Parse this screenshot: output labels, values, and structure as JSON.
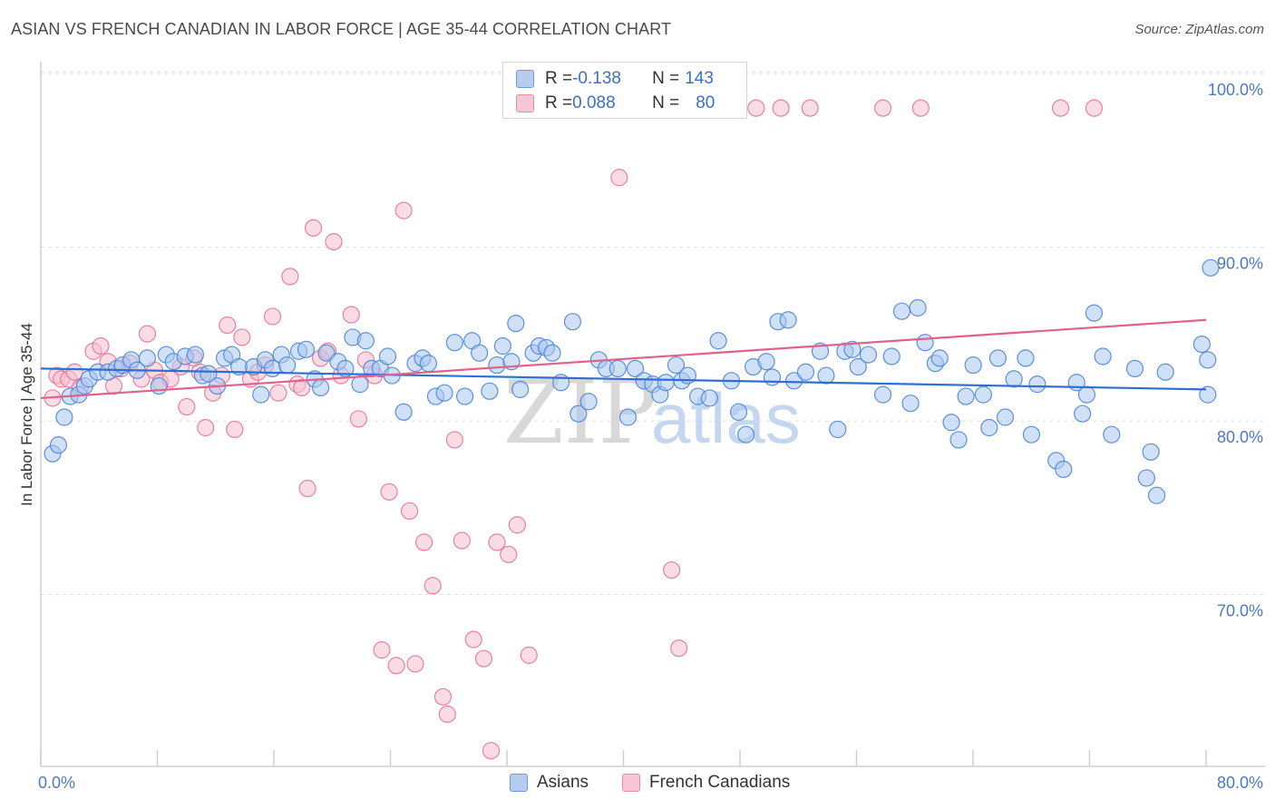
{
  "title": "ASIAN VS FRENCH CANADIAN IN LABOR FORCE | AGE 35-44 CORRELATION CHART",
  "source": "Source: ZipAtlas.com",
  "watermark": {
    "zip": "ZIP",
    "atlas": "atlas"
  },
  "legend": {
    "rows": [
      {
        "r_label": "R = ",
        "r_value": "-0.138",
        "n_label": "N = ",
        "n_value": "143"
      },
      {
        "r_label": "R = ",
        "r_value": "0.088",
        "n_label": "N = ",
        "n_value": "80"
      }
    ]
  },
  "bottom_legend": {
    "asians": "Asians",
    "french": "French Canadians"
  },
  "colors": {
    "asian": "#4a86d8",
    "french": "#e8739a",
    "asian_fill": "#a9c6ee",
    "french_fill": "#f6bfd0",
    "tick": "#4a78c8"
  },
  "chart_data": {
    "type": "scatter",
    "title": "ASIAN VS FRENCH CANADIAN IN LABOR FORCE | AGE 35-44 CORRELATION CHART",
    "xlabel": "",
    "ylabel": "In Labor Force | Age 35-44",
    "xlim": [
      0,
      80
    ],
    "ylim": [
      61,
      101
    ],
    "x_tick_labels": [
      "0.0%",
      "80.0%"
    ],
    "y_ticks": [
      70,
      80,
      90,
      100
    ],
    "y_tick_labels": [
      "70.0%",
      "80.0%",
      "90.0%",
      "100.0%"
    ],
    "grid": "horizontal dashed",
    "legend_position": "top-center",
    "series": [
      {
        "name": "Asians",
        "r": -0.138,
        "n": 143,
        "trend": [
          [
            0,
            85.0
          ],
          [
            80,
            83.8
          ]
        ],
        "points": [
          [
            0.5,
            80.1
          ],
          [
            0.9,
            80.6
          ],
          [
            1.3,
            82.2
          ],
          [
            1.7,
            83.4
          ],
          [
            2.3,
            83.5
          ],
          [
            2.7,
            84.0
          ],
          [
            3.0,
            84.4
          ],
          [
            3.6,
            84.8
          ],
          [
            4.3,
            84.8
          ],
          [
            4.9,
            85.0
          ],
          [
            5.3,
            85.2
          ],
          [
            5.9,
            85.5
          ],
          [
            6.3,
            84.9
          ],
          [
            7.0,
            85.6
          ],
          [
            7.8,
            84.0
          ],
          [
            8.3,
            85.8
          ],
          [
            8.8,
            85.4
          ],
          [
            9.6,
            85.7
          ],
          [
            10.3,
            85.8
          ],
          [
            10.8,
            84.6
          ],
          [
            11.2,
            84.7
          ],
          [
            11.8,
            84.0
          ],
          [
            12.3,
            85.6
          ],
          [
            12.8,
            85.8
          ],
          [
            13.3,
            85.1
          ],
          [
            14.3,
            85.1
          ],
          [
            14.8,
            83.5
          ],
          [
            15.1,
            85.5
          ],
          [
            15.6,
            85.0
          ],
          [
            16.2,
            85.8
          ],
          [
            16.6,
            85.2
          ],
          [
            17.4,
            86.0
          ],
          [
            17.9,
            86.1
          ],
          [
            18.5,
            84.4
          ],
          [
            18.9,
            83.9
          ],
          [
            19.3,
            85.9
          ],
          [
            20.1,
            85.4
          ],
          [
            20.6,
            85.0
          ],
          [
            21.1,
            86.8
          ],
          [
            21.6,
            84.1
          ],
          [
            22.0,
            86.6
          ],
          [
            22.4,
            85.0
          ],
          [
            23.0,
            85.0
          ],
          [
            23.5,
            85.7
          ],
          [
            23.8,
            84.6
          ],
          [
            24.6,
            82.5
          ],
          [
            25.4,
            85.3
          ],
          [
            25.9,
            85.6
          ],
          [
            26.3,
            85.3
          ],
          [
            26.8,
            83.4
          ],
          [
            27.4,
            83.6
          ],
          [
            28.1,
            86.5
          ],
          [
            28.8,
            83.4
          ],
          [
            29.3,
            86.6
          ],
          [
            29.8,
            85.9
          ],
          [
            30.5,
            83.7
          ],
          [
            31.0,
            85.2
          ],
          [
            31.4,
            86.3
          ],
          [
            32.0,
            85.4
          ],
          [
            32.3,
            87.6
          ],
          [
            32.6,
            83.8
          ],
          [
            33.5,
            85.9
          ],
          [
            33.9,
            86.3
          ],
          [
            34.4,
            86.2
          ],
          [
            34.8,
            85.9
          ],
          [
            35.4,
            84.2
          ],
          [
            36.2,
            87.7
          ],
          [
            36.6,
            82.4
          ],
          [
            37.3,
            83.1
          ],
          [
            38.0,
            85.5
          ],
          [
            38.5,
            85.0
          ],
          [
            39.3,
            85.0
          ],
          [
            40.0,
            82.2
          ],
          [
            40.5,
            85.0
          ],
          [
            41.1,
            84.3
          ],
          [
            41.7,
            84.1
          ],
          [
            42.2,
            83.5
          ],
          [
            42.6,
            84.2
          ],
          [
            43.3,
            85.2
          ],
          [
            43.7,
            84.3
          ],
          [
            44.1,
            84.6
          ],
          [
            44.8,
            83.4
          ],
          [
            45.6,
            83.3
          ],
          [
            46.2,
            86.6
          ],
          [
            47.1,
            84.3
          ],
          [
            47.6,
            82.5
          ],
          [
            48.1,
            81.2
          ],
          [
            48.6,
            85.1
          ],
          [
            49.5,
            85.4
          ],
          [
            49.9,
            84.5
          ],
          [
            50.3,
            87.7
          ],
          [
            51.0,
            87.8
          ],
          [
            51.4,
            84.3
          ],
          [
            52.2,
            84.8
          ],
          [
            53.2,
            86.0
          ],
          [
            53.6,
            84.6
          ],
          [
            54.4,
            81.5
          ],
          [
            54.9,
            86.0
          ],
          [
            55.4,
            86.1
          ],
          [
            55.8,
            85.1
          ],
          [
            56.5,
            85.8
          ],
          [
            57.5,
            83.5
          ],
          [
            58.1,
            85.7
          ],
          [
            58.8,
            88.3
          ],
          [
            59.4,
            83.0
          ],
          [
            59.9,
            88.5
          ],
          [
            60.4,
            86.5
          ],
          [
            61.1,
            85.3
          ],
          [
            61.4,
            85.6
          ],
          [
            62.2,
            81.9
          ],
          [
            62.7,
            80.9
          ],
          [
            63.2,
            83.4
          ],
          [
            63.7,
            85.2
          ],
          [
            64.4,
            83.5
          ],
          [
            64.8,
            81.6
          ],
          [
            65.4,
            85.6
          ],
          [
            65.9,
            82.2
          ],
          [
            66.5,
            84.4
          ],
          [
            67.3,
            85.6
          ],
          [
            67.7,
            81.2
          ],
          [
            68.1,
            84.1
          ],
          [
            69.4,
            79.7
          ],
          [
            69.9,
            79.2
          ],
          [
            70.8,
            84.2
          ],
          [
            71.2,
            82.4
          ],
          [
            71.5,
            83.5
          ],
          [
            72.0,
            88.2
          ],
          [
            72.6,
            85.7
          ],
          [
            73.2,
            81.2
          ],
          [
            74.8,
            85.0
          ],
          [
            75.6,
            78.7
          ],
          [
            75.9,
            80.2
          ],
          [
            76.3,
            77.7
          ],
          [
            76.9,
            84.8
          ],
          [
            79.4,
            86.4
          ],
          [
            79.8,
            85.5
          ],
          [
            79.8,
            83.5
          ],
          [
            80.0,
            90.8
          ]
        ]
      },
      {
        "name": "French Canadians",
        "r": 0.088,
        "n": 80,
        "trend": [
          [
            0,
            83.3
          ],
          [
            80,
            87.8
          ]
        ],
        "points": [
          [
            0.5,
            83.3
          ],
          [
            0.8,
            84.6
          ],
          [
            1.1,
            84.4
          ],
          [
            1.6,
            84.4
          ],
          [
            2.0,
            84.8
          ],
          [
            2.4,
            83.9
          ],
          [
            3.3,
            86.0
          ],
          [
            3.8,
            86.3
          ],
          [
            4.3,
            85.4
          ],
          [
            4.7,
            84.0
          ],
          [
            5.2,
            85.0
          ],
          [
            5.8,
            85.3
          ],
          [
            6.6,
            84.4
          ],
          [
            7.0,
            87.0
          ],
          [
            7.5,
            84.9
          ],
          [
            7.9,
            84.2
          ],
          [
            8.6,
            84.4
          ],
          [
            9.3,
            85.1
          ],
          [
            9.7,
            82.8
          ],
          [
            10.2,
            85.6
          ],
          [
            10.6,
            84.8
          ],
          [
            11.0,
            81.6
          ],
          [
            11.5,
            83.6
          ],
          [
            12.1,
            84.6
          ],
          [
            12.5,
            87.5
          ],
          [
            13.0,
            81.5
          ],
          [
            13.5,
            86.8
          ],
          [
            14.1,
            84.4
          ],
          [
            14.6,
            84.8
          ],
          [
            15.1,
            85.2
          ],
          [
            15.6,
            88.0
          ],
          [
            16.0,
            83.6
          ],
          [
            16.8,
            90.3
          ],
          [
            17.3,
            84.1
          ],
          [
            17.6,
            83.9
          ],
          [
            18.0,
            78.1
          ],
          [
            18.4,
            93.1
          ],
          [
            18.9,
            85.6
          ],
          [
            19.4,
            86.0
          ],
          [
            19.8,
            92.3
          ],
          [
            20.3,
            84.6
          ],
          [
            21.0,
            88.1
          ],
          [
            21.5,
            82.1
          ],
          [
            22.0,
            85.5
          ],
          [
            22.6,
            84.6
          ],
          [
            23.1,
            68.8
          ],
          [
            23.6,
            77.9
          ],
          [
            24.1,
            67.9
          ],
          [
            24.6,
            94.1
          ],
          [
            25.0,
            76.8
          ],
          [
            25.4,
            68.0
          ],
          [
            26.0,
            75.0
          ],
          [
            26.6,
            72.5
          ],
          [
            27.3,
            66.1
          ],
          [
            27.6,
            65.1
          ],
          [
            28.1,
            80.9
          ],
          [
            28.6,
            75.1
          ],
          [
            29.4,
            69.4
          ],
          [
            30.1,
            68.3
          ],
          [
            30.6,
            63.0
          ],
          [
            31.0,
            75.0
          ],
          [
            31.8,
            74.3
          ],
          [
            32.4,
            76.0
          ],
          [
            33.2,
            68.5
          ],
          [
            34.0,
            100.0
          ],
          [
            35.1,
            100.0
          ],
          [
            36.3,
            100.0
          ],
          [
            37.5,
            100.0
          ],
          [
            39.4,
            96.0
          ],
          [
            43.0,
            73.4
          ],
          [
            43.5,
            68.9
          ],
          [
            45.4,
            100.0
          ],
          [
            46.9,
            100.0
          ],
          [
            48.8,
            100.0
          ],
          [
            50.5,
            100.0
          ],
          [
            52.5,
            100.0
          ],
          [
            57.5,
            100.0
          ],
          [
            60.1,
            100.0
          ],
          [
            69.7,
            100.0
          ],
          [
            72.0,
            100.0
          ]
        ]
      }
    ]
  }
}
